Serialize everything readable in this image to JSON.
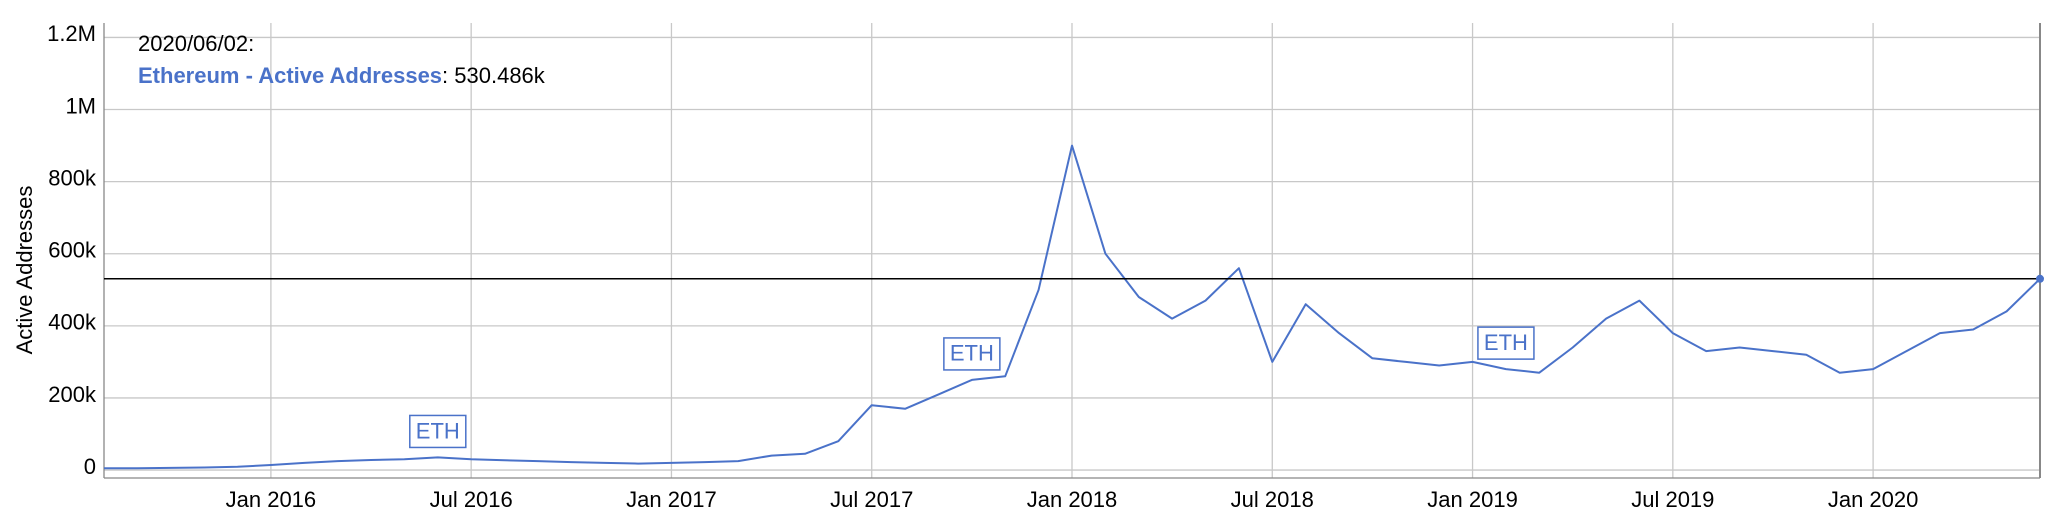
{
  "chart_data": {
    "type": "line",
    "y_label": "Active Addresses",
    "x": [
      "2015-08",
      "2015-09",
      "2015-10",
      "2015-11",
      "2015-12",
      "2016-01",
      "2016-02",
      "2016-03",
      "2016-04",
      "2016-05",
      "2016-06",
      "2016-07",
      "2016-08",
      "2016-09",
      "2016-10",
      "2016-11",
      "2016-12",
      "2017-01",
      "2017-02",
      "2017-03",
      "2017-04",
      "2017-05",
      "2017-06",
      "2017-07",
      "2017-08",
      "2017-09",
      "2017-10",
      "2017-11",
      "2017-12",
      "2018-01",
      "2018-02",
      "2018-03",
      "2018-04",
      "2018-05",
      "2018-06",
      "2018-07",
      "2018-08",
      "2018-09",
      "2018-10",
      "2018-11",
      "2018-12",
      "2019-01",
      "2019-02",
      "2019-03",
      "2019-04",
      "2019-05",
      "2019-06",
      "2019-07",
      "2019-08",
      "2019-09",
      "2019-10",
      "2019-11",
      "2019-12",
      "2020-01",
      "2020-02",
      "2020-03",
      "2020-04",
      "2020-05",
      "2020-06"
    ],
    "series": [
      {
        "name": "Ethereum - Active Addresses",
        "color": "#4a72c9",
        "values": [
          5000,
          5000,
          6000,
          7000,
          9000,
          14000,
          20000,
          25000,
          28000,
          30000,
          35000,
          30000,
          27000,
          25000,
          22000,
          20000,
          18000,
          20000,
          22000,
          25000,
          40000,
          45000,
          80000,
          180000,
          170000,
          210000,
          250000,
          260000,
          500000,
          900000,
          600000,
          480000,
          420000,
          470000,
          560000,
          300000,
          460000,
          380000,
          310000,
          300000,
          290000,
          300000,
          280000,
          270000,
          340000,
          420000,
          470000,
          380000,
          330000,
          340000,
          330000,
          320000,
          270000,
          280000,
          330000,
          380000,
          390000,
          440000,
          530486
        ]
      }
    ],
    "xlim": [
      "2015-08",
      "2020-06"
    ],
    "xticks": [
      {
        "value": "2016-01",
        "label": "Jan 2016"
      },
      {
        "value": "2016-07",
        "label": "Jul 2016"
      },
      {
        "value": "2017-01",
        "label": "Jan 2017"
      },
      {
        "value": "2017-07",
        "label": "Jul 2017"
      },
      {
        "value": "2018-01",
        "label": "Jan 2018"
      },
      {
        "value": "2018-07",
        "label": "Jul 2018"
      },
      {
        "value": "2019-01",
        "label": "Jan 2019"
      },
      {
        "value": "2019-07",
        "label": "Jul 2019"
      },
      {
        "value": "2020-01",
        "label": "Jan 2020"
      }
    ],
    "ylim": [
      -22000,
      1240000
    ],
    "yticks": [
      0,
      {
        "value": 200000,
        "label": "200k"
      },
      {
        "value": 400000,
        "label": "400k"
      },
      {
        "value": 600000,
        "label": "600k"
      },
      {
        "value": 800000,
        "label": "800k"
      },
      {
        "value": 1000000,
        "label": "1M"
      },
      {
        "value": 1200000,
        "label": "1.2M"
      }
    ],
    "grid": true,
    "highlight": {
      "date": "2020/06/02:",
      "value": 530486,
      "value_label": ": 530.486k"
    },
    "annotations": [
      {
        "text": "ETH",
        "x": "2016-06"
      },
      {
        "text": "ETH",
        "x": "2017-10"
      },
      {
        "text": "ETH",
        "x": "2019-02"
      }
    ]
  }
}
